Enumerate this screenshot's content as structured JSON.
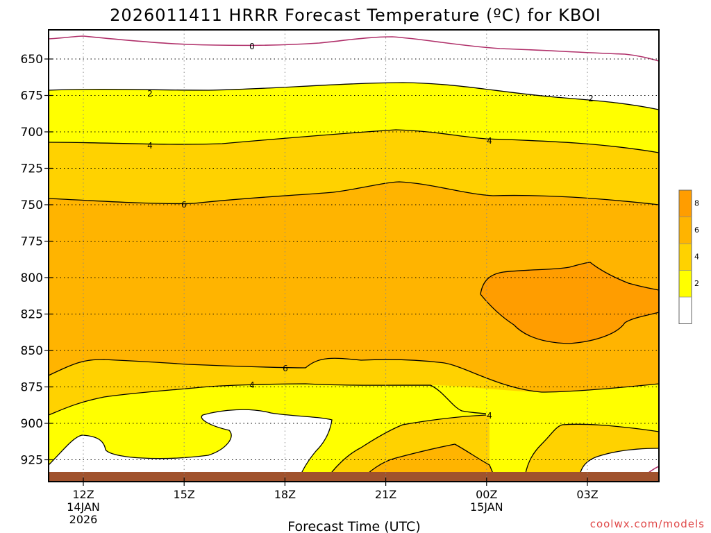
{
  "chart_data": {
    "type": "contour",
    "title": "2026011411 HRRR Forecast Temperature (ºC) for KBOI",
    "xlabel": "Forecast Time (UTC)",
    "ylabel": "",
    "y_axis": {
      "reversed": true,
      "range": [
        630,
        940
      ],
      "ticks": [
        "650",
        "675",
        "700",
        "725",
        "750",
        "775",
        "800",
        "825",
        "850",
        "875",
        "900",
        "925"
      ]
    },
    "x_axis": {
      "range_hours": [
        0,
        18
      ],
      "ticks": [
        {
          "hour": 1,
          "lines": [
            "12Z",
            "14JAN",
            "2026"
          ]
        },
        {
          "hour": 4,
          "lines": [
            "15Z"
          ]
        },
        {
          "hour": 7,
          "lines": [
            "18Z"
          ]
        },
        {
          "hour": 10,
          "lines": [
            "21Z"
          ]
        },
        {
          "hour": 13,
          "lines": [
            "00Z",
            "15JAN"
          ]
        },
        {
          "hour": 16,
          "lines": [
            "03Z"
          ]
        }
      ]
    },
    "grid": true,
    "contour_levels": [
      0,
      2,
      4,
      6,
      8
    ],
    "contour_labels": [
      "0",
      "2",
      "2",
      "4",
      "4",
      "6",
      "6",
      "4",
      "4"
    ],
    "colorbar": {
      "placement": "right",
      "labels": [
        "8",
        "6",
        "4",
        "2"
      ],
      "colors": [
        "#ff9d00",
        "#ffb400",
        "#ffd200",
        "#ffff00",
        "#ffffff"
      ]
    },
    "ground_color": "#a0522d",
    "zero_line_color": "#b0306a",
    "notes_fills": {
      "warm_core": "#ff9d00",
      "band_6_8": "#ffb400",
      "band_4_6": "#ffd200",
      "band_2_4": "#ffff00",
      "below_2": "#ffffff"
    }
  },
  "credit": "coolwx.com/models"
}
